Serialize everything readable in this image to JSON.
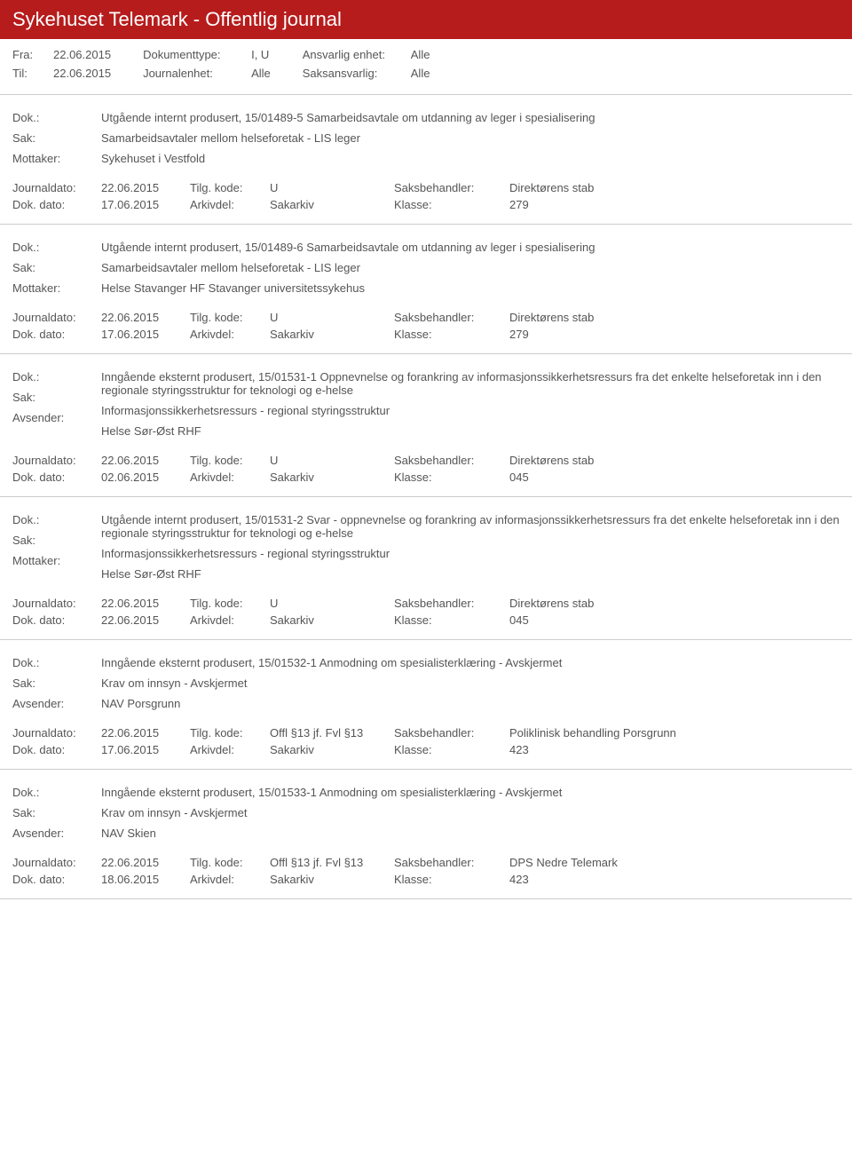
{
  "header_title": "Sykehuset Telemark - Offentlig journal",
  "filters": {
    "fra_label": "Fra:",
    "fra_value": "22.06.2015",
    "til_label": "Til:",
    "til_value": "22.06.2015",
    "doktype_label": "Dokumenttype:",
    "doktype_value": "I, U",
    "journalenhet_label": "Journalenhet:",
    "journalenhet_value": "Alle",
    "ansvarlig_label": "Ansvarlig enhet:",
    "ansvarlig_value": "Alle",
    "saksansvarlig_label": "Saksansvarlig:",
    "saksansvarlig_value": "Alle"
  },
  "labels": {
    "dok": "Dok.:",
    "sak": "Sak:",
    "mottaker": "Mottaker:",
    "avsender": "Avsender:",
    "journaldato": "Journaldato:",
    "dokdato": "Dok. dato:",
    "tilgkode": "Tilg. kode:",
    "arkivdel": "Arkivdel:",
    "saksbehandler": "Saksbehandler:",
    "klasse": "Klasse:"
  },
  "entries": [
    {
      "dok": "Utgående internt produsert, 15/01489-5 Samarbeidsavtale om utdanning av leger i spesialisering",
      "sak": "Samarbeidsavtaler mellom helseforetak - LIS leger",
      "party_label": "Mottaker:",
      "party": "Sykehuset i Vestfold",
      "journaldato": "22.06.2015",
      "tilgkode": "U",
      "saksbehandler": "Direktørens stab",
      "dokdato": "17.06.2015",
      "arkivdel": "Sakarkiv",
      "klasse": "279"
    },
    {
      "dok": "Utgående internt produsert, 15/01489-6 Samarbeidsavtale om utdanning av leger i spesialisering",
      "sak": "Samarbeidsavtaler mellom helseforetak - LIS leger",
      "party_label": "Mottaker:",
      "party": "Helse Stavanger HF Stavanger universitetssykehus",
      "journaldato": "22.06.2015",
      "tilgkode": "U",
      "saksbehandler": "Direktørens stab",
      "dokdato": "17.06.2015",
      "arkivdel": "Sakarkiv",
      "klasse": "279"
    },
    {
      "dok": "Inngående eksternt produsert, 15/01531-1 Oppnevnelse og forankring av informasjonssikkerhetsressurs fra det enkelte helseforetak inn i den regionale styringsstruktur for teknologi og e-helse",
      "sak": "Informasjonssikkerhetsressurs - regional styringsstruktur",
      "party_label": "Avsender:",
      "party": "Helse Sør-Øst RHF",
      "journaldato": "22.06.2015",
      "tilgkode": "U",
      "saksbehandler": "Direktørens stab",
      "dokdato": "02.06.2015",
      "arkivdel": "Sakarkiv",
      "klasse": "045"
    },
    {
      "dok": "Utgående internt produsert, 15/01531-2 Svar - oppnevnelse og forankring av informasjonssikkerhetsressurs fra det enkelte helseforetak inn i den regionale styringsstruktur for teknologi og e-helse",
      "sak": "Informasjonssikkerhetsressurs - regional styringsstruktur",
      "party_label": "Mottaker:",
      "party": "Helse Sør-Øst RHF",
      "journaldato": "22.06.2015",
      "tilgkode": "U",
      "saksbehandler": "Direktørens stab",
      "dokdato": "22.06.2015",
      "arkivdel": "Sakarkiv",
      "klasse": "045"
    },
    {
      "dok": "Inngående eksternt produsert, 15/01532-1 Anmodning om spesialisterklæring - Avskjermet",
      "sak": "Krav om innsyn - Avskjermet",
      "party_label": "Avsender:",
      "party": "NAV Porsgrunn",
      "journaldato": "22.06.2015",
      "tilgkode": "Offl §13 jf. Fvl §13",
      "saksbehandler": "Poliklinisk behandling Porsgrunn",
      "dokdato": "17.06.2015",
      "arkivdel": "Sakarkiv",
      "klasse": "423"
    },
    {
      "dok": "Inngående eksternt produsert, 15/01533-1 Anmodning om spesialisterklæring - Avskjermet",
      "sak": "Krav om innsyn - Avskjermet",
      "party_label": "Avsender:",
      "party": "NAV Skien",
      "journaldato": "22.06.2015",
      "tilgkode": "Offl §13 jf. Fvl §13",
      "saksbehandler": "DPS Nedre Telemark",
      "dokdato": "18.06.2015",
      "arkivdel": "Sakarkiv",
      "klasse": "423"
    }
  ]
}
